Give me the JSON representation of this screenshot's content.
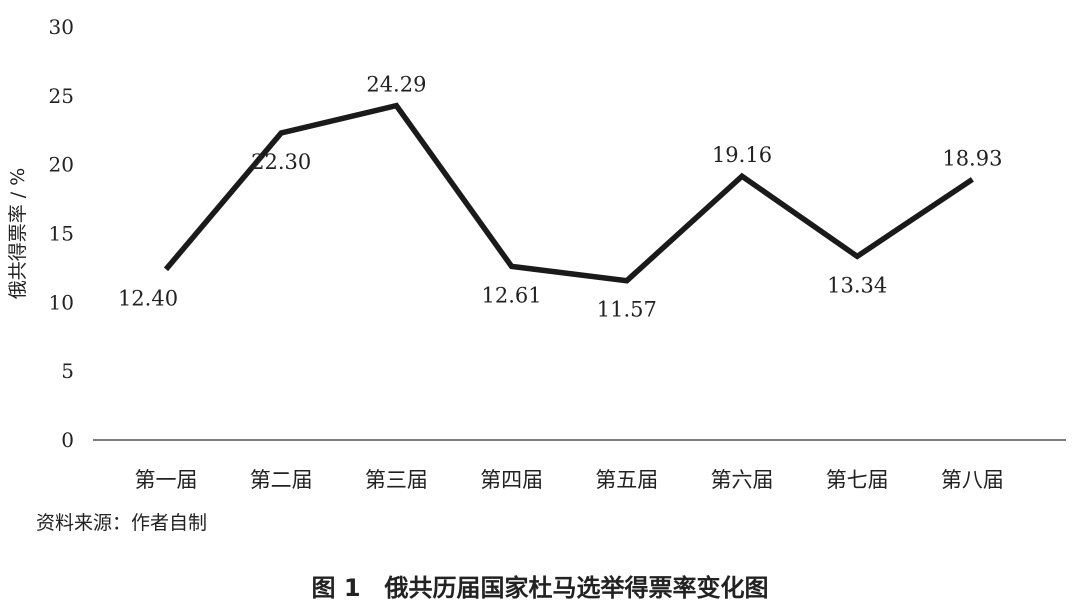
{
  "chart_data": {
    "type": "line",
    "title": "",
    "xlabel": "",
    "ylabel": "俄共得票率 / %",
    "ylim": [
      0,
      30
    ],
    "yticks": [
      0,
      5,
      10,
      15,
      20,
      25,
      30
    ],
    "grid": false,
    "categories": [
      "第一届",
      "第二届",
      "第三届",
      "第四届",
      "第五届",
      "第六届",
      "第七届",
      "第八届"
    ],
    "series": [
      {
        "values": [
          12.4,
          22.3,
          24.29,
          12.61,
          11.57,
          19.16,
          13.34,
          18.93
        ],
        "labels": [
          "12.40",
          "22.30",
          "24.29",
          "12.61",
          "11.57",
          "19.16",
          "13.34",
          "18.93"
        ]
      }
    ],
    "line_color": "#1a1a1a"
  },
  "source_text": "资料来源：作者自制",
  "caption": "图 1　俄共历届国家杜马选举得票率变化图"
}
